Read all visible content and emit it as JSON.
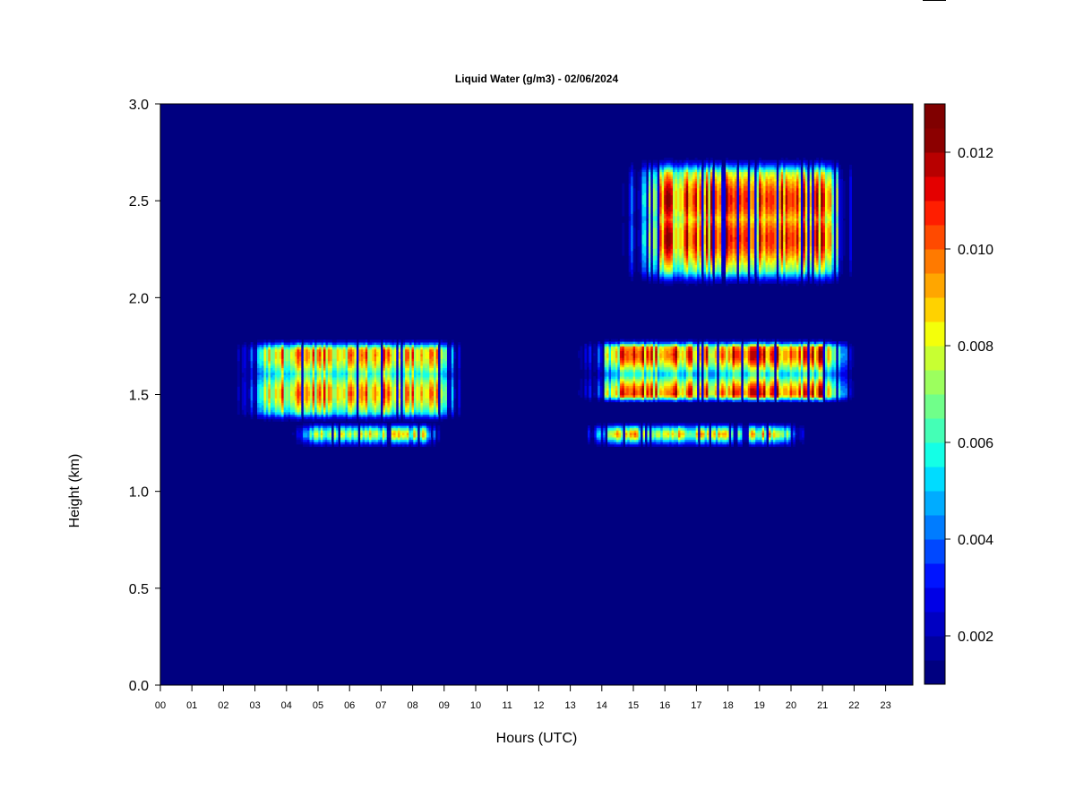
{
  "chart_data": {
    "type": "heatmap",
    "title": "Liquid Water (g/m3) - 02/06/2024",
    "xlabel": "Hours (UTC)",
    "ylabel": "Height (km)",
    "xlim": [
      0,
      24
    ],
    "ylim": [
      0,
      3
    ],
    "x_ticks": [
      "00",
      "01",
      "02",
      "03",
      "04",
      "05",
      "06",
      "07",
      "08",
      "09",
      "10",
      "11",
      "12",
      "13",
      "14",
      "15",
      "16",
      "17",
      "18",
      "19",
      "20",
      "21",
      "22",
      "23"
    ],
    "y_ticks": [
      "0.0",
      "0.5",
      "1.0",
      "1.5",
      "2.0",
      "2.5",
      "3.0"
    ],
    "background_value": 0.001,
    "colorbar": {
      "min": 0.001,
      "max": 0.013,
      "step": 0.0005,
      "ticks": [
        {
          "value": 0.002,
          "label": "0.002"
        },
        {
          "value": 0.004,
          "label": "0.004"
        },
        {
          "value": 0.006,
          "label": "0.006"
        },
        {
          "value": 0.008,
          "label": "0.008"
        },
        {
          "value": 0.01,
          "label": "0.010"
        },
        {
          "value": 0.012,
          "label": "0.012"
        }
      ],
      "colors": [
        "#000080",
        "#00009e",
        "#0000c2",
        "#0000e6",
        "#0014ff",
        "#0048ff",
        "#007cff",
        "#00acff",
        "#00dcff",
        "#14ffe6",
        "#44ffb6",
        "#70ff8a",
        "#9cff5e",
        "#c8ff32",
        "#f4ff0a",
        "#ffd200",
        "#ffa600",
        "#ff7a00",
        "#ff4a00",
        "#ff1e00",
        "#e40000",
        "#b80000",
        "#8c0000",
        "#800000"
      ]
    },
    "cloud_layers": [
      {
        "x_start": 2.3,
        "x_end": 9.6,
        "base_km": 1.35,
        "top_km": 1.78,
        "peak": 0.0115,
        "peak_heights_km": [
          1.5,
          1.7
        ]
      },
      {
        "x_start": 4.1,
        "x_end": 8.9,
        "base_km": 1.22,
        "top_km": 1.35,
        "peak": 0.0095,
        "peak_heights_km": [
          1.29
        ]
      },
      {
        "x_start": 13.1,
        "x_end": 22.0,
        "base_km": 1.45,
        "top_km": 1.78,
        "peak": 0.0128,
        "peak_heights_km": [
          1.5,
          1.7
        ]
      },
      {
        "x_start": 13.2,
        "x_end": 20.5,
        "base_km": 1.22,
        "top_km": 1.35,
        "peak": 0.0105,
        "peak_heights_km": [
          1.29
        ]
      },
      {
        "x_start": 14.5,
        "x_end": 22.0,
        "base_km": 2.05,
        "top_km": 2.72,
        "peak": 0.0128,
        "peak_heights_km": [
          2.3,
          2.5
        ]
      }
    ]
  }
}
